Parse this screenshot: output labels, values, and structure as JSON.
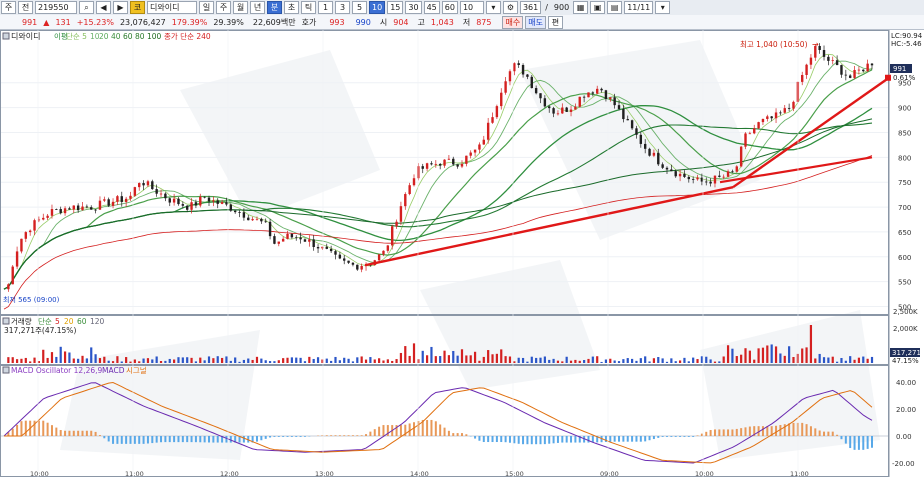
{
  "toolbar": {
    "stock_prefix": "주",
    "market": "전",
    "code": "219550",
    "company_badge": "코",
    "company_name": "디와이디",
    "periods": [
      "일",
      "주",
      "월",
      "년"
    ],
    "minute_label": "분",
    "tick_label": "초",
    "tick2_label": "틱",
    "intervals": [
      "1",
      "3",
      "5",
      "10",
      "15",
      "30",
      "45",
      "60"
    ],
    "interval_dropdown": "10",
    "count": "361",
    "count_total": "900",
    "date": "11/11"
  },
  "infobar": {
    "price": "991",
    "change_arrow": "▲",
    "change": "131",
    "change_pct": "+15.23%",
    "volume": "23,076,427",
    "vol_ratio": "179.39%",
    "turnover_ratio": "29.39%",
    "amount": "22,609백만",
    "quote_label": "호가",
    "ask": "993",
    "bid": "990",
    "open_label": "시",
    "open": "904",
    "high_label": "고",
    "high": "1,043",
    "low_label": "저",
    "low": "875",
    "buy_label": "매수",
    "sell_label": "매도",
    "edit_label": "편"
  },
  "price_panel": {
    "title": "디와이디",
    "ma_legend": [
      "단순 5",
      "10",
      "20",
      "40",
      "60",
      "80",
      "100"
    ],
    "ma_title_prefix": "이평",
    "extra_legend": "종가 단순 240",
    "high_annotation": "최고 1,040 (10:50)",
    "lc_label": "LC:90.94",
    "hc_label": "HC:-5.46",
    "low_annotation": "최저 565 (09:00)",
    "current_price_tag": "991",
    "current_pct_tag": "0.61%"
  },
  "volume_panel": {
    "title": "거래량",
    "ma_prefix": "단순",
    "ma_legend": [
      "5",
      "20",
      "60",
      "120"
    ],
    "current": "317,271주(47.15%)",
    "ticks": [
      "2,500K",
      "2,000K"
    ],
    "tag_value": "317,271",
    "tag_pct": "47.15%"
  },
  "macd_panel": {
    "title": "MACD Oscillator 12,26,9",
    "macd_label": "MACD",
    "signal_label": "시그널",
    "ticks": [
      "40.00",
      "20.00",
      "0.00",
      "-20.00"
    ]
  },
  "chart_data": {
    "type": "candlestick",
    "price_axis": {
      "ticks": [
        950,
        900,
        850,
        800,
        750,
        700,
        650,
        600,
        550,
        500
      ],
      "ylim": [
        487,
        1052
      ]
    },
    "x_labels": [
      "10:00",
      "11:00",
      "12:00",
      "13:00",
      "14:00",
      "15:00",
      "09:00",
      "10:00",
      "11:00"
    ],
    "key_points": {
      "day_open_low": 565,
      "session_high": 1040,
      "current": 991
    },
    "colors": {
      "up": "#d42020",
      "down": "#1f1f1f",
      "ma_green": "#2f8f3f",
      "trend_line": "#e01818"
    }
  }
}
